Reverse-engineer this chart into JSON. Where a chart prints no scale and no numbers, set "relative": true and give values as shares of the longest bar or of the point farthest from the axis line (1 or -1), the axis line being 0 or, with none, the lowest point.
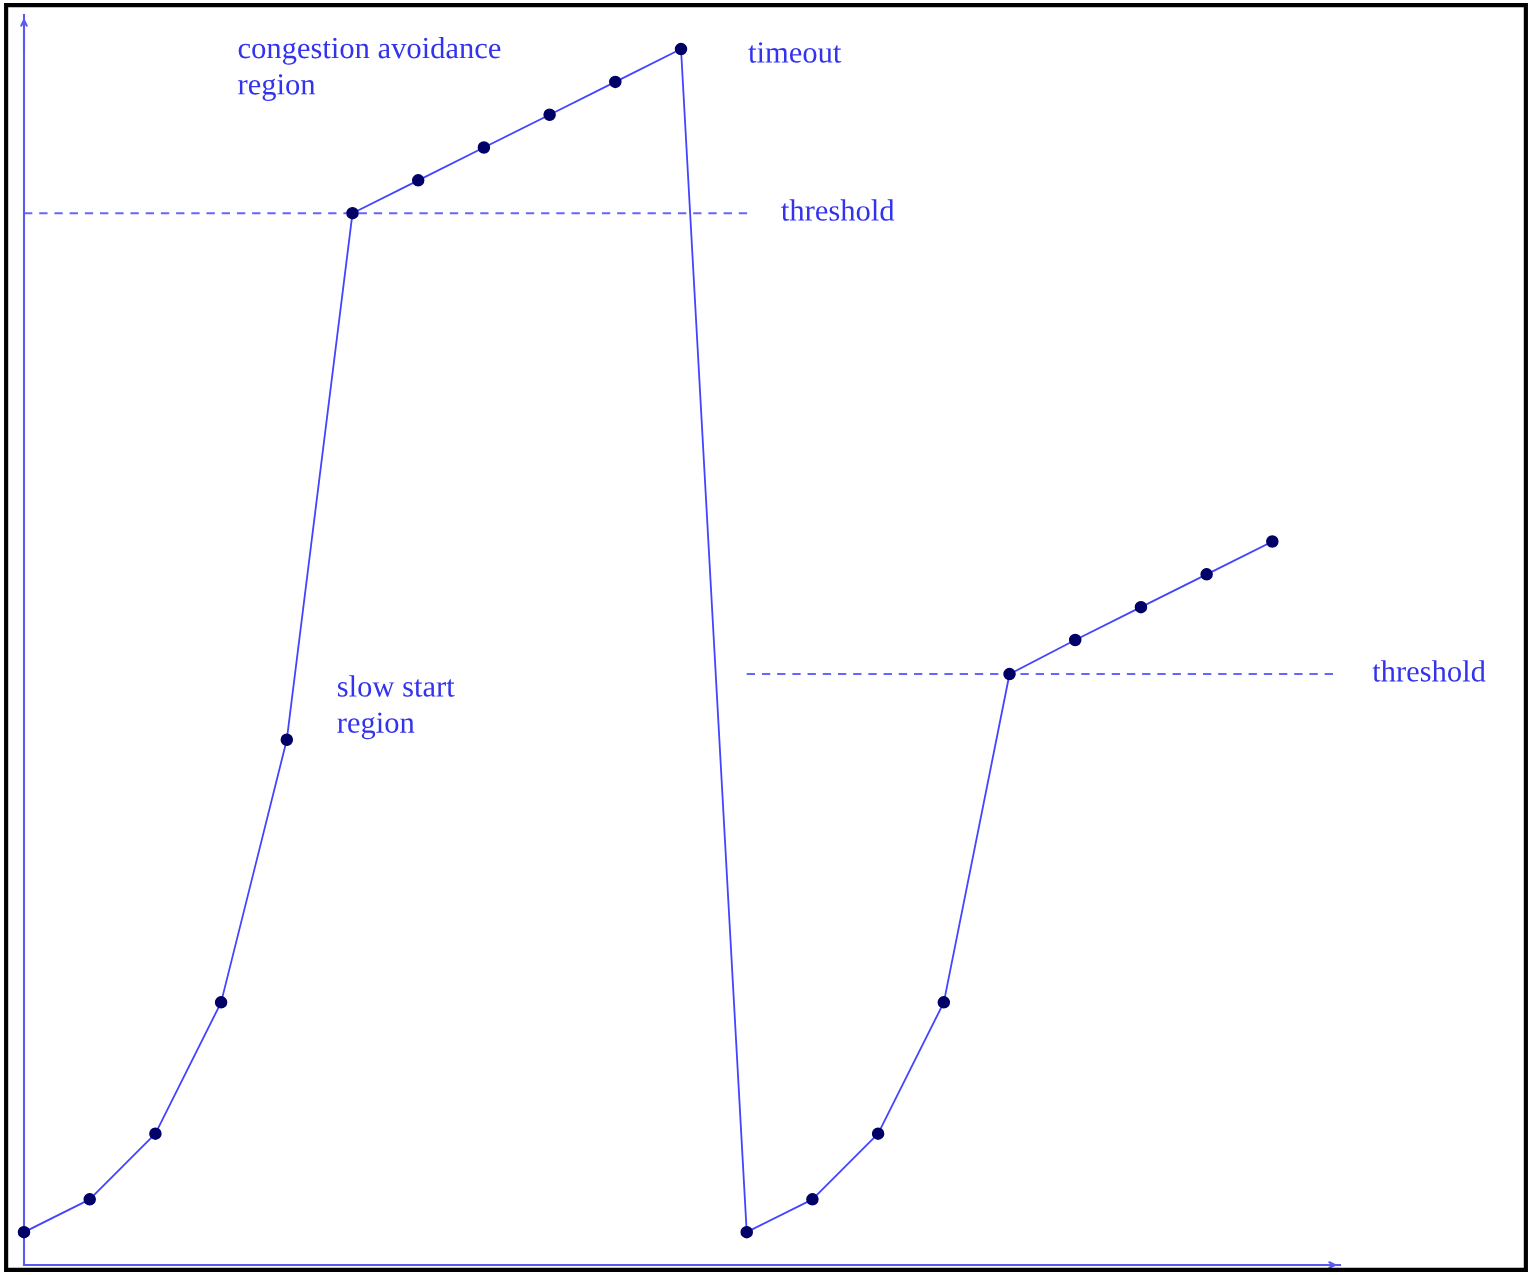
{
  "chart_data": {
    "type": "line",
    "relative": true,
    "categories": [
      null,
      null,
      null,
      null,
      null,
      null,
      null,
      null,
      null,
      null,
      null,
      null,
      null,
      null,
      null,
      null,
      null,
      null,
      null,
      null
    ],
    "series": [
      {
        "color": "#4444ff",
        "values": [
          0.027,
          0.054,
          0.108,
          0.216,
          0.432,
          0.865,
          0.892,
          0.919,
          0.946,
          0.973,
          1,
          0.027,
          0.054,
          0.108,
          0.216,
          0.486,
          0.514,
          0.541,
          0.568,
          0.595
        ]
      }
    ],
    "marker": "circle",
    "line_style": "solid",
    "grid": false,
    "ref_lines": [
      {
        "axis": "y",
        "value": 0.865,
        "label": "threshold",
        "color": "#6666ff",
        "line_style": "dashed"
      },
      {
        "axis": "y",
        "value": 0.486,
        "label": "threshold",
        "color": "#6666ff",
        "line_style": "dashed"
      }
    ],
    "annotations": [
      "congestion avoidance\nregion",
      "timeout",
      "slow start\nregion"
    ]
  }
}
